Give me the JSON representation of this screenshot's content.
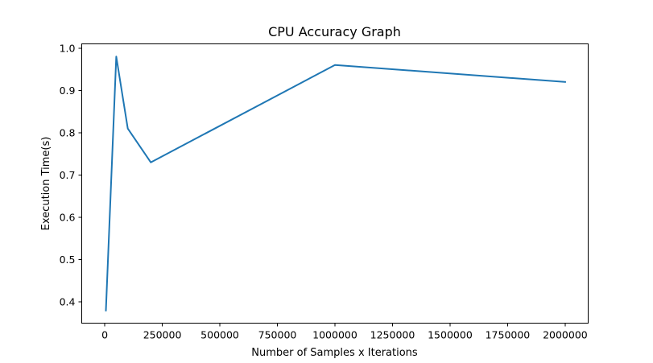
{
  "chart_data": {
    "type": "line",
    "title": "CPU Accuracy Graph",
    "xlabel": "Number of Samples x Iterations",
    "ylabel": "Execution Time(s)",
    "xlim": [
      -100000,
      2100000
    ],
    "ylim": [
      0.35,
      1.01
    ],
    "xticks": [
      0,
      250000,
      500000,
      750000,
      1000000,
      1250000,
      1500000,
      1750000,
      2000000
    ],
    "xtick_labels": [
      "0",
      "250000",
      "500000",
      "750000",
      "1000000",
      "1250000",
      "1500000",
      "1750000",
      "2000000"
    ],
    "yticks": [
      0.4,
      0.5,
      0.6,
      0.7,
      0.8,
      0.9,
      1.0
    ],
    "ytick_labels": [
      "0.4",
      "0.5",
      "0.6",
      "0.7",
      "0.8",
      "0.9",
      "1.0"
    ],
    "grid": false,
    "series": [
      {
        "color": "#1f77b4",
        "x": [
          5000,
          20000,
          50000,
          100000,
          200000,
          1000000,
          2000000
        ],
        "y": [
          0.38,
          0.58,
          0.98,
          0.81,
          0.73,
          0.96,
          0.92
        ]
      }
    ]
  }
}
